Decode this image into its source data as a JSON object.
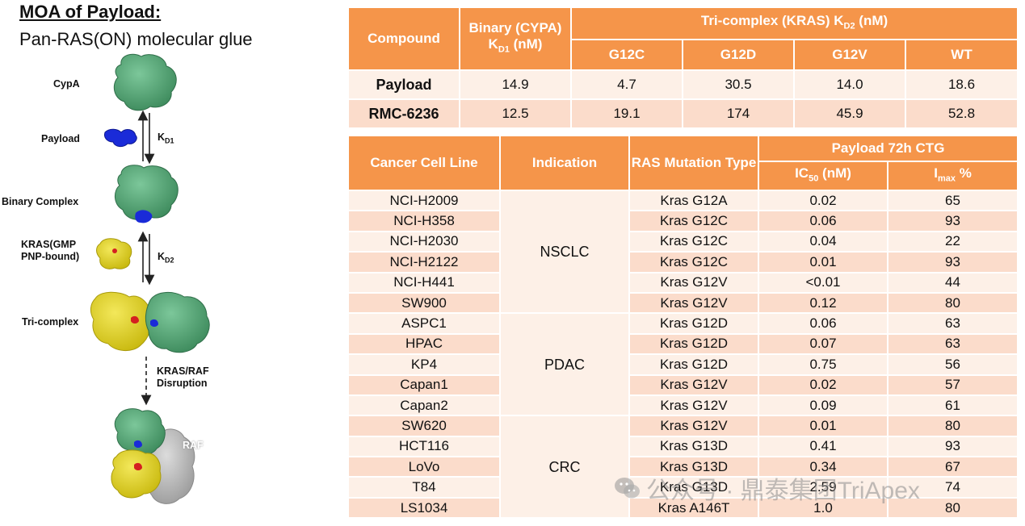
{
  "moa": {
    "title": "MOA of Payload:",
    "subtitle": "Pan-RAS(ON) molecular glue",
    "stages": {
      "cypa": "CypA",
      "payload": "Payload",
      "binary": "Binary Complex",
      "kras": "KRAS(GMP\nPNP-bound)",
      "tri": "Tri-complex",
      "disruption": "KRAS/RAF\nDisruption",
      "raf": "RAF"
    },
    "k1": {
      "main": "K",
      "sub": "D1"
    },
    "k2": {
      "main": "K",
      "sub": "D2"
    },
    "colors": {
      "cypa": "#4a9e6e",
      "payload": "#1a2bd8",
      "kras": "#e0d322",
      "raf": "#b8b8b8"
    }
  },
  "kd_table": {
    "headers": {
      "compound": "Compound",
      "binary_pre": "Binary (CYPA) K",
      "binary_sub": "D1",
      "binary_post": " (nM)",
      "tri_pre": "Tri-complex (KRAS) K",
      "tri_sub": "D2",
      "tri_post": " (nM)",
      "mutants": [
        "G12C",
        "G12D",
        "G12V",
        "WT"
      ]
    },
    "rows": [
      {
        "compound": "Payload",
        "binary": "14.9",
        "g12c": "4.7",
        "g12d": "30.5",
        "g12v": "14.0",
        "wt": "18.6"
      },
      {
        "compound": "RMC-6236",
        "binary": "12.5",
        "g12c": "19.1",
        "g12d": "174",
        "g12v": "45.9",
        "wt": "52.8"
      }
    ]
  },
  "cell_table": {
    "headers": {
      "cell_line": "Cancer Cell Line",
      "indication": "Indication",
      "mutation": "RAS Mutation Type",
      "group": "Payload 72h CTG",
      "ic50_pre": "IC",
      "ic50_sub": "50",
      "ic50_post": " (nM)",
      "imax_pre": "I",
      "imax_sub": "max",
      "imax_post": " %"
    },
    "indications": [
      {
        "name": "NSCLC",
        "span": 6
      },
      {
        "name": "PDAC",
        "span": 5
      },
      {
        "name": "CRC",
        "span": 5
      }
    ],
    "rows": [
      {
        "cell": "NCI-H2009",
        "mutation": "Kras G12A",
        "ic50": "0.02",
        "imax": "65"
      },
      {
        "cell": "NCI-H358",
        "mutation": "Kras G12C",
        "ic50": "0.06",
        "imax": "93"
      },
      {
        "cell": "NCI-H2030",
        "mutation": "Kras G12C",
        "ic50": "0.04",
        "imax": "22"
      },
      {
        "cell": "NCI-H2122",
        "mutation": "Kras G12C",
        "ic50": "0.01",
        "imax": "93"
      },
      {
        "cell": "NCI-H441",
        "mutation": "Kras G12V",
        "ic50": "<0.01",
        "imax": "44"
      },
      {
        "cell": "SW900",
        "mutation": "Kras G12V",
        "ic50": "0.12",
        "imax": "80"
      },
      {
        "cell": "ASPC1",
        "mutation": "Kras G12D",
        "ic50": "0.06",
        "imax": "63"
      },
      {
        "cell": "HPAC",
        "mutation": "Kras G12D",
        "ic50": "0.07",
        "imax": "63"
      },
      {
        "cell": "KP4",
        "mutation": "Kras G12D",
        "ic50": "0.75",
        "imax": "56"
      },
      {
        "cell": "Capan1",
        "mutation": "Kras G12V",
        "ic50": "0.02",
        "imax": "57"
      },
      {
        "cell": "Capan2",
        "mutation": "Kras G12V",
        "ic50": "0.09",
        "imax": "61"
      },
      {
        "cell": "SW620",
        "mutation": "Kras G12V",
        "ic50": "0.01",
        "imax": "80"
      },
      {
        "cell": "HCT116",
        "mutation": "Kras G13D",
        "ic50": "0.41",
        "imax": "93"
      },
      {
        "cell": "LoVo",
        "mutation": "Kras G13D",
        "ic50": "0.34",
        "imax": "67"
      },
      {
        "cell": "T84",
        "mutation": "Kras G13D",
        "ic50": "2.59",
        "imax": "74"
      },
      {
        "cell": "LS1034",
        "mutation": "Kras A146T",
        "ic50": "1.0",
        "imax": "80"
      }
    ]
  },
  "watermark": {
    "text": "公众号 · 鼎泰集团TriApex",
    "icon": "wechat-icon"
  }
}
